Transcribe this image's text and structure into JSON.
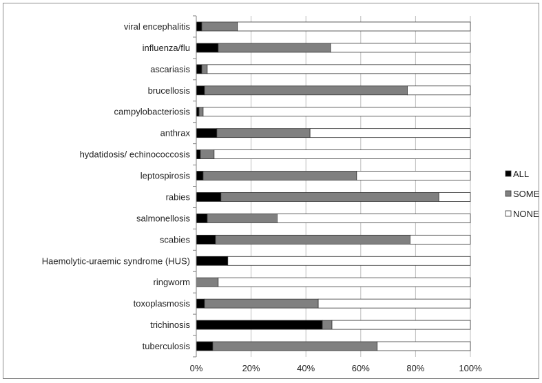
{
  "chart_data": {
    "type": "bar",
    "stacked": true,
    "orientation": "horizontal",
    "percent_stacked": true,
    "categories": [
      "viral encephalitis",
      "influenza/flu",
      "ascariasis",
      "brucellosis",
      "campylobacteriosis",
      "anthrax",
      "hydatidosis/ echinococcosis",
      "leptospirosis",
      "rabies",
      "salmonellosis",
      "scabies",
      "Haemolytic-uraemic syndrome (HUS)",
      "ringworm",
      "toxoplasmosis",
      "trichinosis",
      "tuberculosis"
    ],
    "series": [
      {
        "name": "ALL",
        "color": "#000000",
        "values": [
          2,
          8,
          2,
          3,
          1,
          7.5,
          1.5,
          2.5,
          9,
          4,
          7,
          11.5,
          0,
          3,
          46,
          6
        ]
      },
      {
        "name": "SOME",
        "color": "#808080",
        "values": [
          13,
          41,
          2,
          74,
          1.5,
          34,
          5,
          56,
          79.5,
          25.5,
          71,
          0,
          8,
          41.5,
          3.5,
          60
        ]
      },
      {
        "name": "NONE",
        "color": "#ffffff",
        "values": [
          85,
          51,
          96,
          23,
          97.5,
          58.5,
          93.5,
          41.5,
          11.5,
          70.5,
          22,
          88.5,
          92,
          55.5,
          50.5,
          34
        ]
      }
    ],
    "x_ticks": [
      "0%",
      "20%",
      "40%",
      "60%",
      "80%",
      "100%"
    ],
    "xlim": [
      0,
      100
    ],
    "grid": "vertical",
    "legend": "right"
  }
}
